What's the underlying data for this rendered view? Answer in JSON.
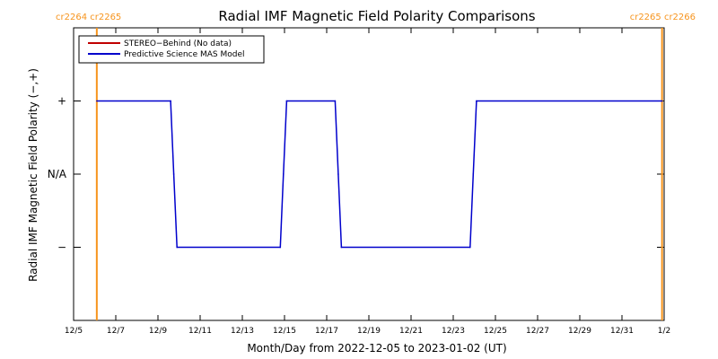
{
  "chart_data": {
    "type": "line",
    "title": "Radial IMF Magnetic Field Polarity Comparisons",
    "xlabel": "Month/Day from 2022-12-05 to 2023-01-02 (UT)",
    "ylabel": "Radial IMF Magnetic Field Polarity (−,+)",
    "x_range_days": [
      0,
      28
    ],
    "x_ticks": [
      {
        "day": 0,
        "label": "12/5"
      },
      {
        "day": 2,
        "label": "12/7"
      },
      {
        "day": 4,
        "label": "12/9"
      },
      {
        "day": 6,
        "label": "12/11"
      },
      {
        "day": 8,
        "label": "12/13"
      },
      {
        "day": 10,
        "label": "12/15"
      },
      {
        "day": 12,
        "label": "12/17"
      },
      {
        "day": 14,
        "label": "12/19"
      },
      {
        "day": 16,
        "label": "12/21"
      },
      {
        "day": 18,
        "label": "12/23"
      },
      {
        "day": 20,
        "label": "12/25"
      },
      {
        "day": 22,
        "label": "12/27"
      },
      {
        "day": 24,
        "label": "12/29"
      },
      {
        "day": 26,
        "label": "12/31"
      },
      {
        "day": 28,
        "label": "1/2"
      }
    ],
    "y_range": [
      -2,
      2
    ],
    "y_ticks": [
      {
        "value": 1,
        "label": "+"
      },
      {
        "value": 0,
        "label": "N/A"
      },
      {
        "value": -1,
        "label": "−"
      }
    ],
    "carrington_markers": [
      {
        "day": 1.1,
        "label": "cr2264 cr2265",
        "anchor": "left"
      },
      {
        "day": 27.9,
        "label": "cr2265 cr2266",
        "anchor": "right"
      }
    ],
    "series": [
      {
        "name": "STEREO−Behind (No data)",
        "color": "#c00000",
        "points": []
      },
      {
        "name": "Predictive Science MAS Model",
        "color": "#0000cc",
        "points": [
          [
            1.1,
            1
          ],
          [
            4.6,
            1
          ],
          [
            4.75,
            0
          ],
          [
            4.9,
            -1
          ],
          [
            9.8,
            -1
          ],
          [
            9.95,
            0
          ],
          [
            10.1,
            1
          ],
          [
            12.4,
            1
          ],
          [
            12.55,
            0
          ],
          [
            12.7,
            -1
          ],
          [
            18.8,
            -1
          ],
          [
            18.95,
            0
          ],
          [
            19.1,
            1
          ],
          [
            27.9,
            1
          ]
        ]
      }
    ],
    "marker_color": "#f7941d"
  }
}
